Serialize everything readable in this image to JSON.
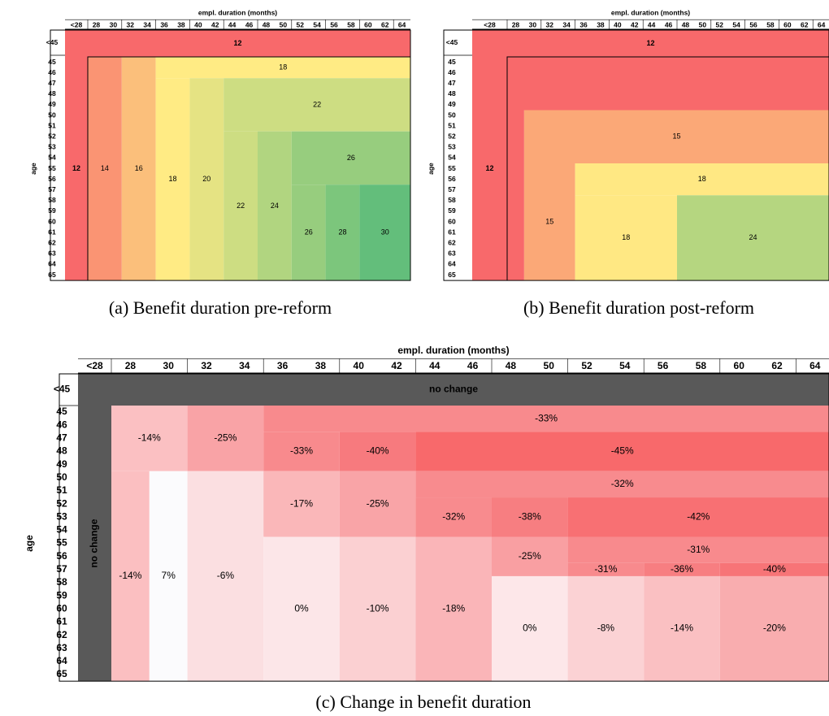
{
  "panels": [
    {
      "caption": "(a) Benefit duration pre-reform",
      "x_title": "empl. duration (months)",
      "y_title": "age",
      "column_labels": [
        "<28",
        "28",
        "30",
        "32",
        "34",
        "36",
        "38",
        "40",
        "42",
        "44",
        "46",
        "48",
        "50",
        "52",
        "54",
        "56",
        "58",
        "60",
        "62",
        "64"
      ],
      "row_labels": [
        "<45",
        "45",
        "46",
        "47",
        "48",
        "49",
        "50",
        "51",
        "52",
        "53",
        "54",
        "55",
        "56",
        "57",
        "58",
        "59",
        "60",
        "61",
        "62",
        "63",
        "64",
        "65"
      ],
      "cells": [
        "12",
        "12",
        "14",
        "16",
        "18",
        "18",
        "20",
        "22",
        "22",
        "24",
        "26",
        "26",
        "28",
        "30"
      ]
    },
    {
      "caption": "(b) Benefit duration post-reform",
      "x_title": "empl. duration (months)",
      "y_title": "age",
      "column_labels": [
        "<28",
        "28",
        "30",
        "32",
        "34",
        "36",
        "38",
        "40",
        "42",
        "44",
        "46",
        "48",
        "50",
        "52",
        "54",
        "56",
        "58",
        "60",
        "62",
        "64"
      ],
      "row_labels": [
        "<45",
        "45",
        "46",
        "47",
        "48",
        "49",
        "50",
        "51",
        "52",
        "53",
        "54",
        "55",
        "56",
        "57",
        "58",
        "59",
        "60",
        "61",
        "62",
        "63",
        "64",
        "65"
      ],
      "cells": [
        "12",
        "12",
        "15",
        "15",
        "18",
        "18",
        "24"
      ]
    },
    {
      "caption": "(c) Change in benefit duration",
      "x_title": "empl. duration (months)",
      "y_title": "age",
      "column_labels": [
        "<28",
        "28",
        "30",
        "32",
        "34",
        "36",
        "38",
        "40",
        "42",
        "44",
        "46",
        "48",
        "50",
        "52",
        "54",
        "56",
        "58",
        "60",
        "62",
        "64"
      ],
      "row_labels": [
        "<45",
        "45",
        "46",
        "47",
        "48",
        "49",
        "50",
        "51",
        "52",
        "53",
        "54",
        "55",
        "56",
        "57",
        "58",
        "59",
        "60",
        "61",
        "62",
        "63",
        "64",
        "65"
      ],
      "cells": [
        "no change",
        "no change",
        "-14%",
        "-25%",
        "-33%",
        "-33%",
        "-40%",
        "-45%",
        "-14%",
        "7%",
        "-6%",
        "-32%",
        "-17%",
        "-25%",
        "-32%",
        "-38%",
        "-42%",
        "0%",
        "-10%",
        "-18%",
        "-25%",
        "-31%",
        "-31%",
        "-36%",
        "-40%",
        "0%",
        "-8%",
        "-14%",
        "-20%"
      ]
    }
  ]
}
